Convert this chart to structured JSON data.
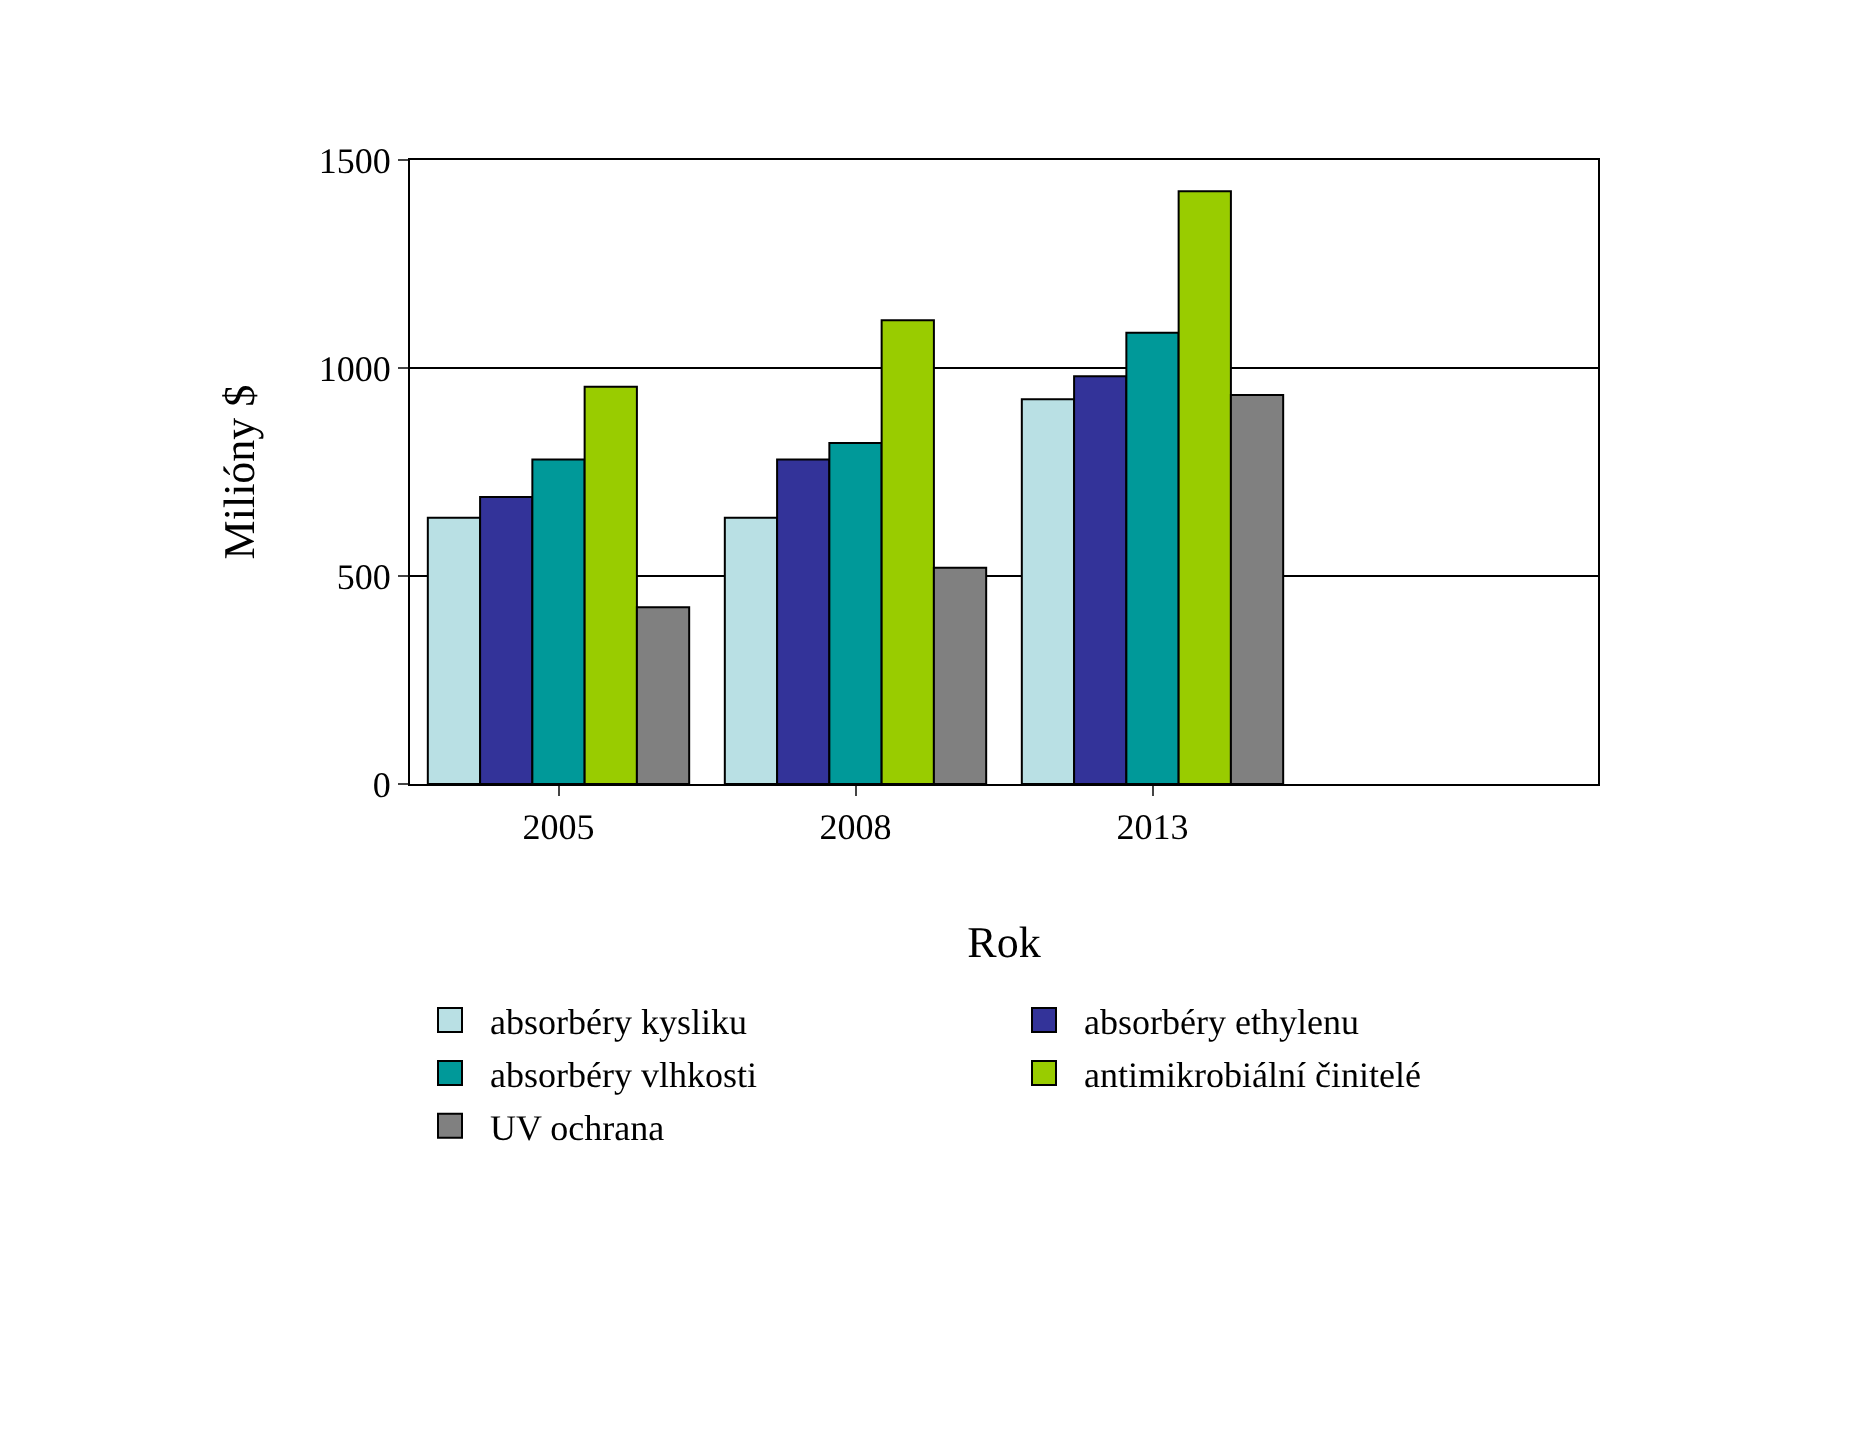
{
  "chart_data": {
    "type": "bar",
    "xlabel": "Rok",
    "ylabel": "Milióny $",
    "categories": [
      "2005",
      "2008",
      "2013",
      null
    ],
    "series": [
      {
        "name": "absorbéry kysliku",
        "color": "#b9e0e4",
        "values": [
          640,
          640,
          925,
          null
        ]
      },
      {
        "name": "absorbéry ethylenu",
        "color": "#333399",
        "values": [
          690,
          780,
          980,
          null
        ]
      },
      {
        "name": "absorbéry vlhkosti",
        "color": "#009999",
        "values": [
          780,
          820,
          1085,
          null
        ]
      },
      {
        "name": "antimikrobiální činitelé",
        "color": "#99cc00",
        "values": [
          955,
          1115,
          1425,
          null
        ]
      },
      {
        "name": "UV ochrana",
        "color": "#808080",
        "values": [
          425,
          520,
          935,
          null
        ]
      }
    ],
    "ylim": [
      0,
      1500
    ],
    "yticks": [
      0,
      500,
      1000,
      1500
    ],
    "grid": "y",
    "legend": "bottom"
  }
}
